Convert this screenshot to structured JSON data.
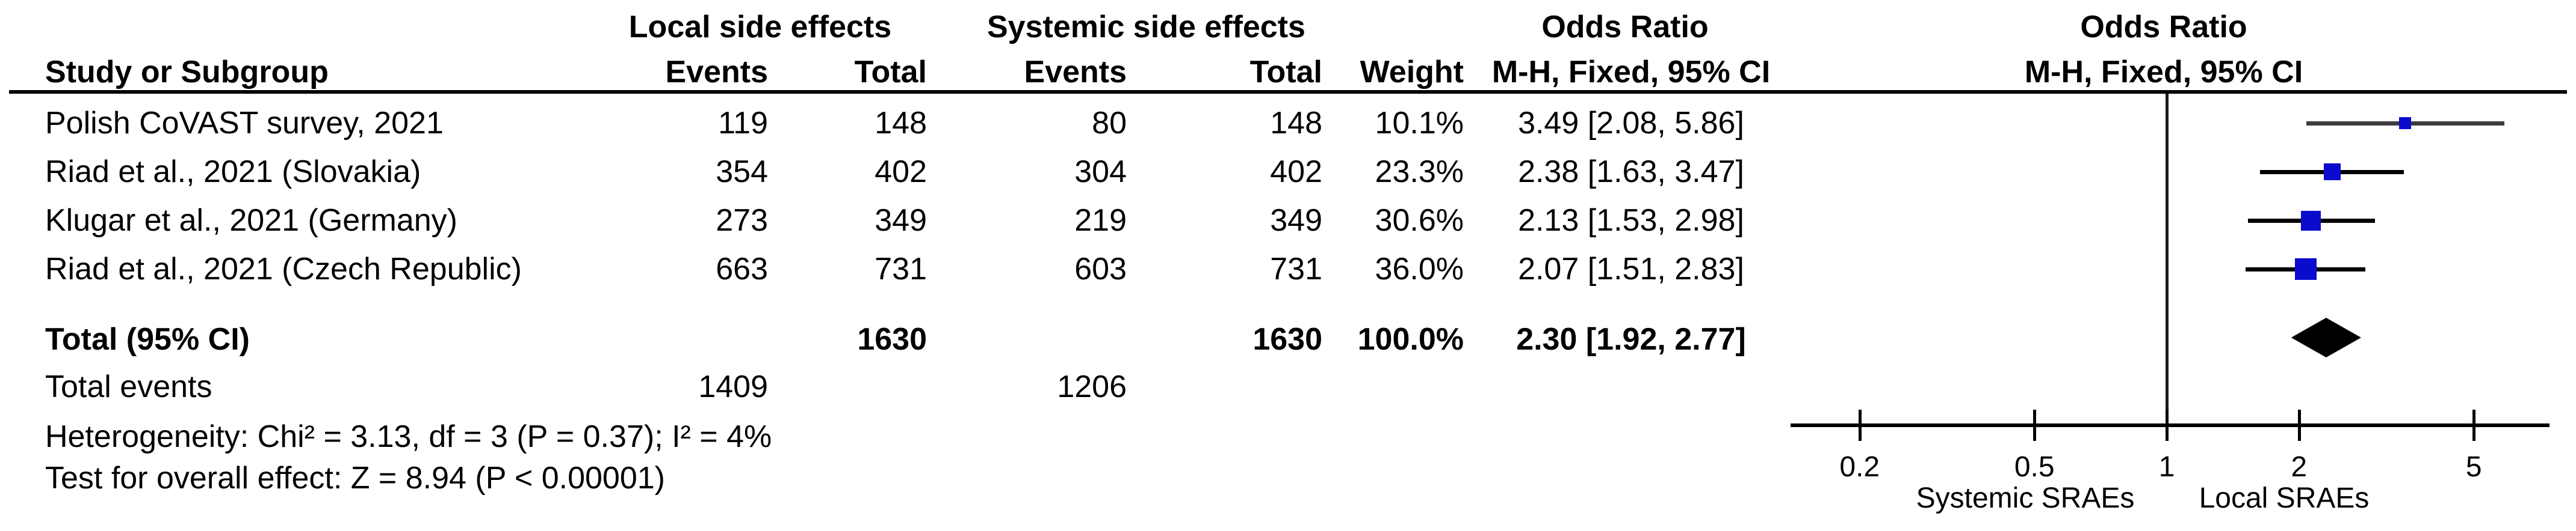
{
  "table": {
    "group_headers": {
      "local": "Local side effects",
      "systemic": "Systemic side effects",
      "or_text": "Odds Ratio",
      "or_plot": "Odds Ratio"
    },
    "columns": {
      "study": "Study or Subgroup",
      "events_local": "Events",
      "total_local": "Total",
      "events_systemic": "Events",
      "total_systemic": "Total",
      "weight": "Weight",
      "or_ci": "M-H, Fixed, 95% CI",
      "or_ci_plot": "M-H, Fixed, 95% CI"
    },
    "studies": [
      {
        "name": "Polish CoVAST survey, 2021",
        "events_local": "119",
        "total_local": "148",
        "events_systemic": "80",
        "total_systemic": "148",
        "weight": "10.1%",
        "or_ci": "3.49 [2.08, 5.86]"
      },
      {
        "name": "Riad et al., 2021 (Slovakia)",
        "events_local": "354",
        "total_local": "402",
        "events_systemic": "304",
        "total_systemic": "402",
        "weight": "23.3%",
        "or_ci": "2.38 [1.63, 3.47]"
      },
      {
        "name": "Klugar et al., 2021 (Germany)",
        "events_local": "273",
        "total_local": "349",
        "events_systemic": "219",
        "total_systemic": "349",
        "weight": "30.6%",
        "or_ci": "2.13 [1.53, 2.98]"
      },
      {
        "name": "Riad et al., 2021 (Czech Republic)",
        "events_local": "663",
        "total_local": "731",
        "events_systemic": "603",
        "total_systemic": "731",
        "weight": "36.0%",
        "or_ci": "2.07 [1.51, 2.83]"
      }
    ],
    "total_row": {
      "label": "Total (95% CI)",
      "total_local": "1630",
      "total_systemic": "1630",
      "weight": "100.0%",
      "or_ci": "2.30 [1.92, 2.77]"
    },
    "total_events": {
      "label": "Total events",
      "local": "1409",
      "systemic": "1206"
    },
    "footer": {
      "heterogeneity": "Heterogeneity: Chi² = 3.13, df = 3 (P = 0.37); I² = 4%",
      "overall_effect": "Test for overall effect: Z = 8.94 (P < 0.00001)"
    }
  },
  "chart_data": {
    "type": "scatter",
    "subtype": "forest_plot",
    "title": "Odds Ratio  M-H, Fixed, 95% CI",
    "x_scale": "log10",
    "x_ticks": [
      0.2,
      0.5,
      1,
      2,
      5
    ],
    "x_tick_labels": [
      "0.2",
      "0.5",
      "1",
      "2",
      "5"
    ],
    "x_range": [
      0.14,
      7.4
    ],
    "null_line": 1,
    "axis_side_labels": {
      "left": "Systemic SRAEs",
      "right": "Local SRAEs"
    },
    "studies": [
      {
        "name": "Polish CoVAST survey, 2021",
        "or": 3.49,
        "ci_low": 2.08,
        "ci_high": 5.86,
        "weight_pct": 10.1
      },
      {
        "name": "Riad et al., 2021 (Slovakia)",
        "or": 2.38,
        "ci_low": 1.63,
        "ci_high": 3.47,
        "weight_pct": 23.3
      },
      {
        "name": "Klugar et al., 2021 (Germany)",
        "or": 2.13,
        "ci_low": 1.53,
        "ci_high": 2.98,
        "weight_pct": 30.6
      },
      {
        "name": "Riad et al., 2021 (Czech Republic)",
        "or": 2.07,
        "ci_low": 1.51,
        "ci_high": 2.83,
        "weight_pct": 36.0
      }
    ],
    "total": {
      "name": "Total (95% CI)",
      "or": 2.3,
      "ci_low": 1.92,
      "ci_high": 2.77,
      "weight_pct": 100.0
    },
    "colors": {
      "marker_blue": "#0b0bce",
      "ci_line": "#000000",
      "first_row_ci_line": "#3d3d3d",
      "diamond": "#000000",
      "text": "#000000"
    }
  }
}
